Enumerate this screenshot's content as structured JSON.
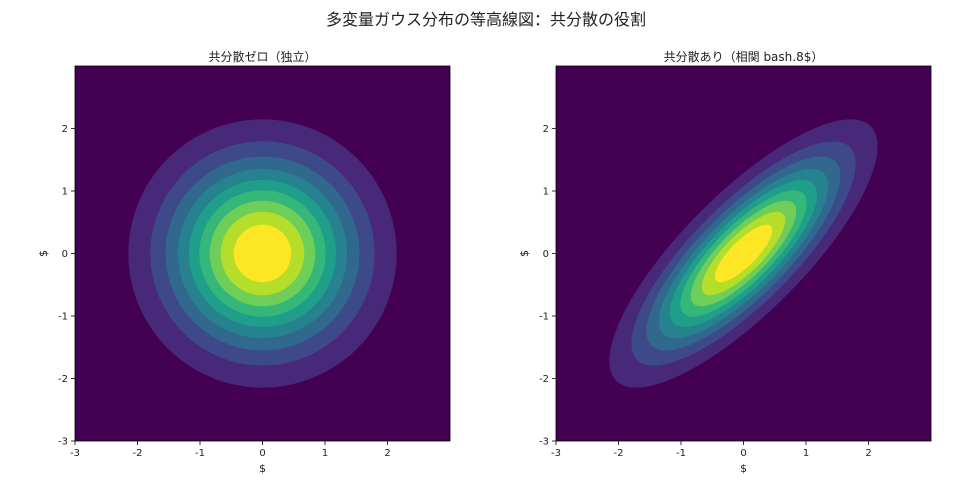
{
  "figure": {
    "title": "多変量ガウス分布の等高線図：共分散の役割"
  },
  "chart_data": [
    {
      "type": "contour",
      "title": "共分散ゼロ（独立）",
      "xlabel": "$",
      "ylabel": "$",
      "xlim": [
        -3,
        3
      ],
      "ylim": [
        -3,
        3
      ],
      "xticks": [
        -3,
        -2,
        -1,
        0,
        1,
        2
      ],
      "yticks": [
        -3,
        -2,
        -1,
        0,
        1,
        2
      ],
      "mean": [
        0,
        0
      ],
      "covariance": [
        [
          1,
          0
        ],
        [
          0,
          1
        ]
      ],
      "levels": 10,
      "colormap": "viridis",
      "background_color": "#440154"
    },
    {
      "type": "contour",
      "title": "共分散あり（相関 bash.8$）",
      "xlabel": "$",
      "ylabel": "$",
      "xlim": [
        -3,
        3
      ],
      "ylim": [
        -3,
        3
      ],
      "xticks": [
        -3,
        -2,
        -1,
        0,
        1,
        2
      ],
      "yticks": [
        -3,
        -2,
        -1,
        0,
        1,
        2
      ],
      "mean": [
        0,
        0
      ],
      "covariance": [
        [
          1,
          0.8
        ],
        [
          0.8,
          1
        ]
      ],
      "levels": 10,
      "colormap": "viridis",
      "background_color": "#440154"
    }
  ],
  "colors": {
    "viridis": [
      "#440154",
      "#482878",
      "#3e4989",
      "#31688e",
      "#26828e",
      "#1f9e89",
      "#35b779",
      "#6ece58",
      "#b5de2b",
      "#fde725"
    ]
  }
}
